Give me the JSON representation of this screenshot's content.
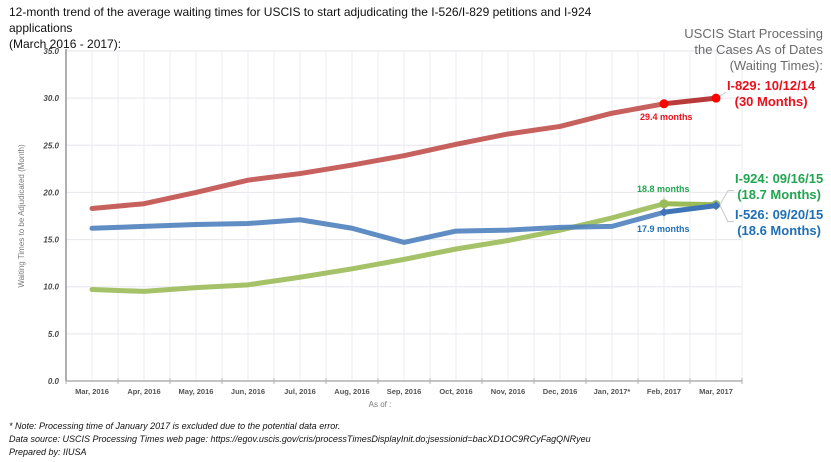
{
  "title_lines": [
    "12-month trend of the average waiting times for USCIS to start adjudicating the I-526/I-829 petitions and I-924 applications",
    "(March 2016 - 2017):"
  ],
  "right_header_lines": [
    "USCIS Start Processing",
    "the Cases As of Dates",
    "(Waiting Times):"
  ],
  "annotations": {
    "i829": {
      "line1": "I-829: 10/12/14",
      "line2": "(30 Months)",
      "color": "#e8101c"
    },
    "i924": {
      "line1": "I-924: 09/16/15",
      "line2": "(18.7 Months)",
      "color": "#21a550"
    },
    "i526": {
      "line1": "I-526: 09/20/15",
      "line2": "(18.6 Months)",
      "color": "#1f6fb4"
    }
  },
  "point_labels": {
    "i829_feb": "29.4 months",
    "i924_feb": "18.8 months",
    "i526_feb": "17.9 months"
  },
  "notes": [
    "* Note: Processing time of January 2017 is excluded due to the potential data error.",
    "Data source: USCIS Processing Times web page: https://egov.uscis.gov/cris/processTimesDisplayInit.do;jsessionid=bacXD1OC9RCyFagQNRyeu",
    "Prepared by: IIUSA"
  ],
  "chart_data": {
    "type": "line",
    "title": "12-month trend of the average waiting times for USCIS to start adjudicating the I-526/I-829 petitions and I-924 applications (March 2016 - 2017)",
    "xlabel": "As of :",
    "ylabel": "Waiting Times to be Adjudicated (Month)",
    "ylim": [
      0,
      35
    ],
    "yticks": [
      "0.0",
      "5.0",
      "10.0",
      "15.0",
      "20.0",
      "25.0",
      "30.0",
      "35.0"
    ],
    "grid": true,
    "categories": [
      "Mar, 2016",
      "Apr, 2016",
      "May, 2016",
      "Jun, 2016",
      "Jul, 2016",
      "Aug, 2016",
      "Sep, 2016",
      "Oct, 2016",
      "Nov, 2016",
      "Dec, 2016",
      "Jan, 2017*",
      "Feb, 2017",
      "Mar, 2017"
    ],
    "series": [
      {
        "name": "I-829",
        "color": "#c0504d",
        "highlight_color": "#e8101c",
        "values": [
          18.3,
          18.8,
          20.0,
          21.3,
          22.0,
          22.9,
          23.9,
          25.1,
          26.2,
          27.0,
          28.4,
          29.4,
          30.0
        ]
      },
      {
        "name": "I-526",
        "color": "#4f81bd",
        "highlight_color": "#1f6fb4",
        "values": [
          16.2,
          16.4,
          16.6,
          16.7,
          17.1,
          16.2,
          14.7,
          15.9,
          16.0,
          16.3,
          16.4,
          17.9,
          18.6
        ]
      },
      {
        "name": "I-924",
        "color": "#9bbb59",
        "highlight_color": "#8cbf50",
        "values": [
          9.7,
          9.5,
          9.9,
          10.2,
          11.0,
          11.9,
          12.9,
          14.0,
          14.9,
          16.0,
          17.3,
          18.8,
          18.7
        ]
      }
    ]
  }
}
